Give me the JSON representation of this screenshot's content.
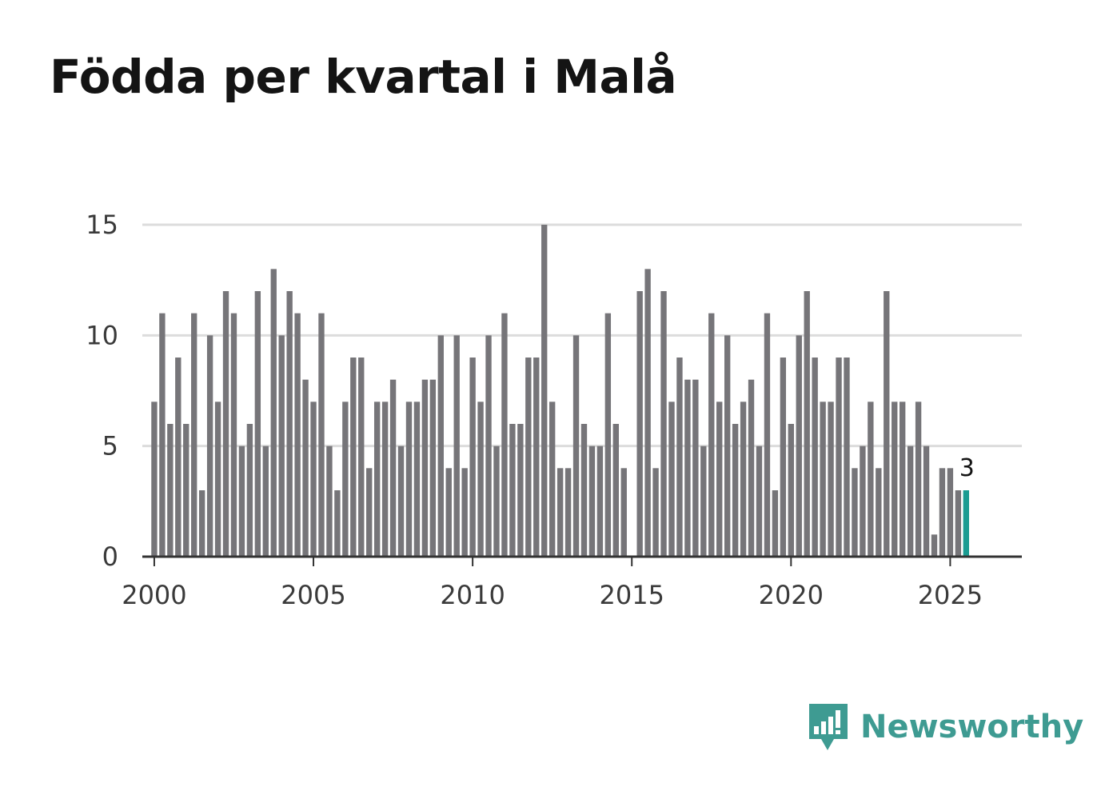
{
  "chart_data": {
    "type": "bar",
    "title": "Födda per kvartal i Malå",
    "xlabel": "",
    "ylabel": "",
    "ylim": [
      0,
      15
    ],
    "yticks": [
      0,
      5,
      10,
      15
    ],
    "xticks": [
      2000,
      2005,
      2010,
      2015,
      2020,
      2025
    ],
    "xlim": [
      1999.625,
      2027.25
    ],
    "grid": true,
    "start_year": 2000,
    "values": [
      7,
      11,
      6,
      9,
      6,
      11,
      3,
      10,
      7,
      12,
      11,
      5,
      6,
      12,
      5,
      13,
      10,
      12,
      11,
      8,
      7,
      11,
      5,
      3,
      7,
      9,
      9,
      4,
      7,
      7,
      8,
      5,
      7,
      7,
      8,
      8,
      10,
      4,
      10,
      4,
      9,
      7,
      10,
      5,
      11,
      6,
      6,
      9,
      9,
      15,
      7,
      4,
      4,
      10,
      6,
      5,
      5,
      11,
      6,
      4,
      0,
      12,
      13,
      4,
      12,
      7,
      9,
      8,
      8,
      5,
      11,
      7,
      10,
      6,
      7,
      8,
      5,
      11,
      3,
      9,
      6,
      10,
      12,
      9,
      7,
      7,
      9,
      9,
      4,
      5,
      7,
      4,
      12,
      7,
      7,
      5,
      7,
      5,
      1,
      4,
      4,
      3,
      3
    ],
    "highlight_index": 102,
    "annotation": "3",
    "colors": {
      "bar": "#767579",
      "highlight": "#1a9c92",
      "grid": "#dcdcdc",
      "axis": "#333333"
    }
  },
  "brand": {
    "name": "Newsworthy",
    "icon": "newsworthy-logo-icon",
    "color": "#3e9b92"
  }
}
